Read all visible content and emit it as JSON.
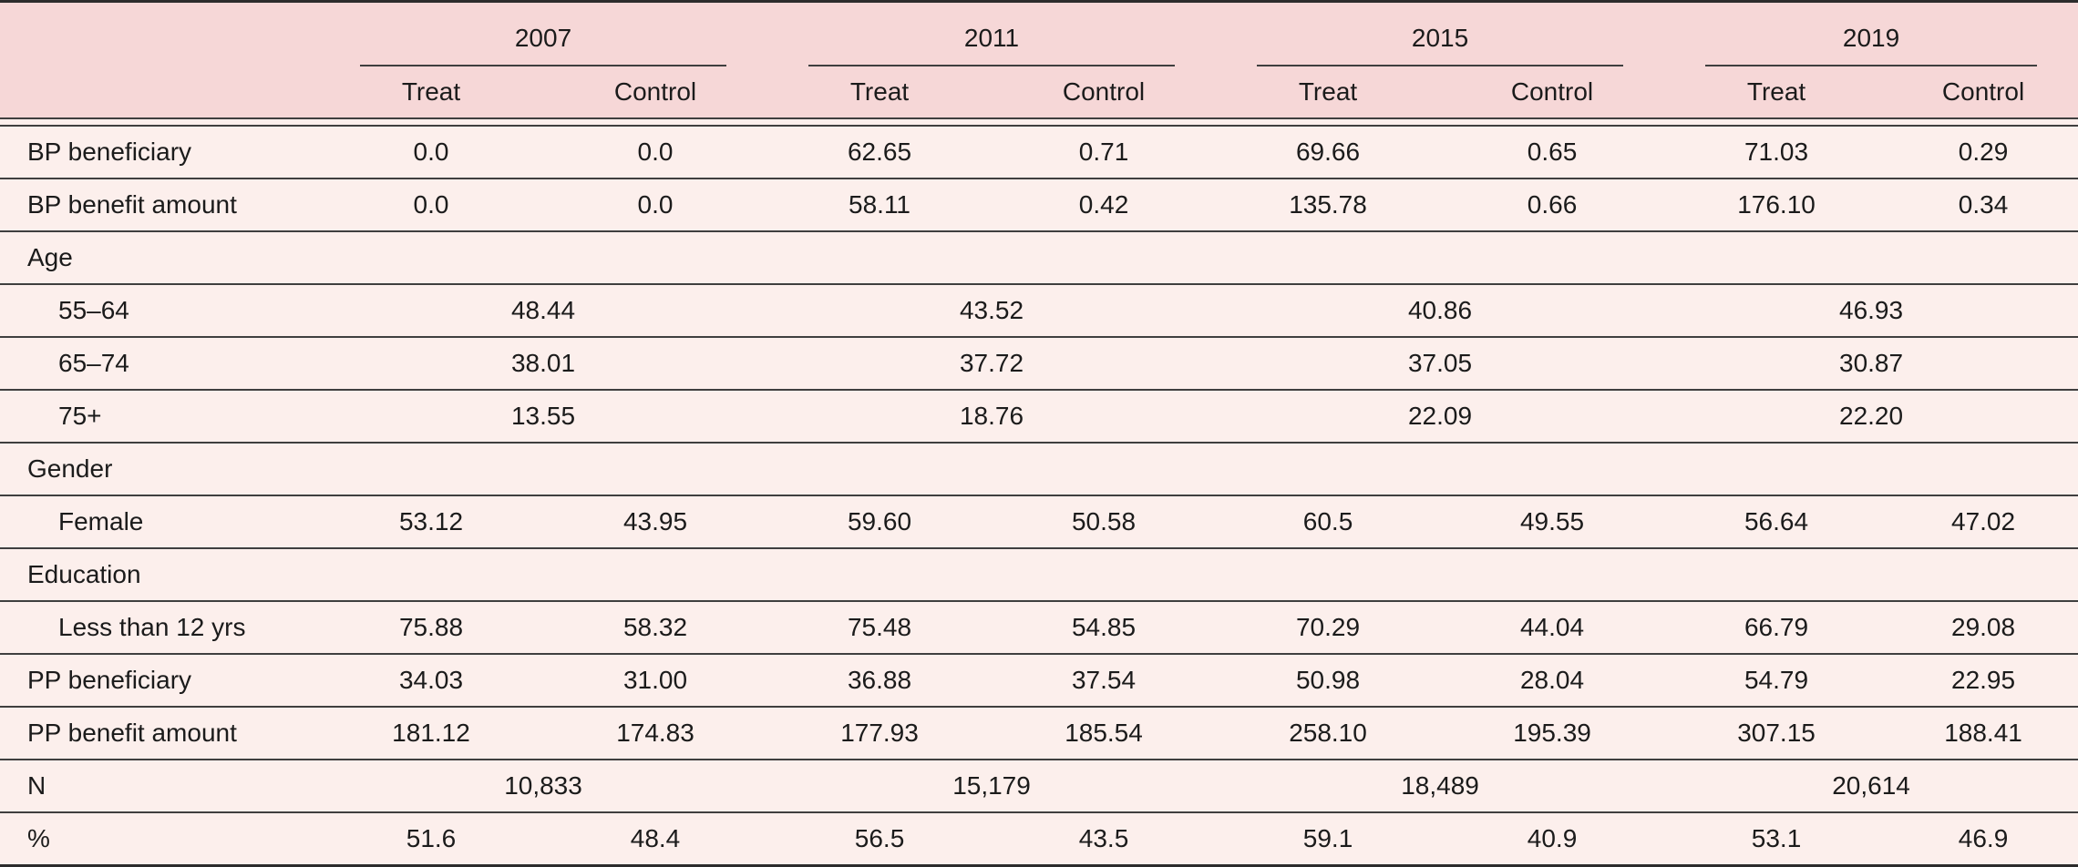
{
  "table": {
    "year_groups": [
      "2007",
      "2011",
      "2015",
      "2019"
    ],
    "sub_headers": [
      "Treat",
      "Control"
    ],
    "rows": [
      {
        "label": "BP beneficiary",
        "type": "values",
        "indent": false,
        "values": [
          "0.0",
          "0.0",
          "62.65",
          "0.71",
          "69.66",
          "0.65",
          "71.03",
          "0.29"
        ]
      },
      {
        "label": "BP benefit amount",
        "type": "values",
        "indent": false,
        "values": [
          "0.0",
          "0.0",
          "58.11",
          "0.42",
          "135.78",
          "0.66",
          "176.10",
          "0.34"
        ]
      },
      {
        "label": "Age",
        "type": "section",
        "indent": false,
        "values": []
      },
      {
        "label": "55–64",
        "type": "spans",
        "indent": true,
        "values": [
          "48.44",
          "43.52",
          "40.86",
          "46.93"
        ]
      },
      {
        "label": "65–74",
        "type": "spans",
        "indent": true,
        "values": [
          "38.01",
          "37.72",
          "37.05",
          "30.87"
        ]
      },
      {
        "label": "75+",
        "type": "spans",
        "indent": true,
        "values": [
          "13.55",
          "18.76",
          "22.09",
          "22.20"
        ]
      },
      {
        "label": "Gender",
        "type": "section",
        "indent": false,
        "values": []
      },
      {
        "label": "Female",
        "type": "values",
        "indent": true,
        "values": [
          "53.12",
          "43.95",
          "59.60",
          "50.58",
          "60.5",
          "49.55",
          "56.64",
          "47.02"
        ]
      },
      {
        "label": "Education",
        "type": "section",
        "indent": false,
        "values": []
      },
      {
        "label": "Less than 12 yrs",
        "type": "values",
        "indent": true,
        "values": [
          "75.88",
          "58.32",
          "75.48",
          "54.85",
          "70.29",
          "44.04",
          "66.79",
          "29.08"
        ]
      },
      {
        "label": "PP beneficiary",
        "type": "values",
        "indent": false,
        "values": [
          "34.03",
          "31.00",
          "36.88",
          "37.54",
          "50.98",
          "28.04",
          "54.79",
          "22.95"
        ]
      },
      {
        "label": "PP benefit amount",
        "type": "values",
        "indent": false,
        "values": [
          "181.12",
          "174.83",
          "177.93",
          "185.54",
          "258.10",
          "195.39",
          "307.15",
          "188.41"
        ]
      },
      {
        "label": "N",
        "type": "spans",
        "indent": false,
        "values": [
          "10,833",
          "15,179",
          "18,489",
          "20,614"
        ]
      },
      {
        "label": "%",
        "type": "values",
        "indent": false,
        "values": [
          "51.6",
          "48.4",
          "56.5",
          "43.5",
          "59.1",
          "40.9",
          "53.1",
          "46.9"
        ]
      }
    ],
    "colors": {
      "header_bg": "#f6d7d7",
      "body_bg": "#fcefec",
      "rule": "#3f3f3f",
      "rule_heavy": "#2c2c2c",
      "text": "#1b1b1b"
    }
  }
}
